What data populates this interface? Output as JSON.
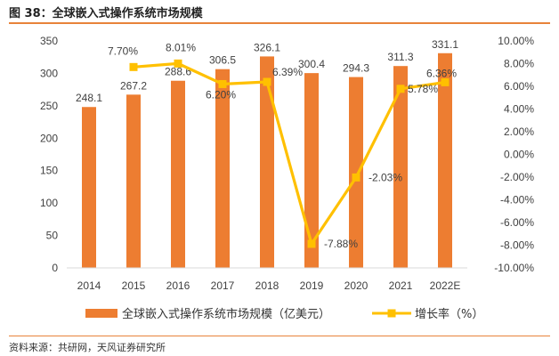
{
  "header": {
    "title": "图 38：全球嵌入式操作系统市场规模"
  },
  "footer": {
    "source": "资料来源：共研网，天风证券研究所"
  },
  "colors": {
    "bar": "#ed7d31",
    "line": "#ffc000",
    "axis": "#d9d9d9",
    "text": "#404040",
    "rule": "#e8833a"
  },
  "chart_data": {
    "type": "bar+line",
    "categories": [
      "2014",
      "2015",
      "2016",
      "2017",
      "2018",
      "2019",
      "2020",
      "2021",
      "2022E"
    ],
    "series": [
      {
        "name": "全球嵌入式操作系统市场规模（亿美元）",
        "type": "bar",
        "axis": "left",
        "values": [
          248.1,
          267.2,
          288.6,
          306.5,
          326.1,
          300.4,
          294.3,
          311.3,
          331.1
        ],
        "labels": [
          "248.1",
          "267.2",
          "288.6",
          "306.5",
          "326.1",
          "300.4",
          "294.3",
          "311.3",
          "331.1"
        ]
      },
      {
        "name": "增长率（%）",
        "type": "line",
        "axis": "right",
        "values": [
          null,
          7.7,
          8.01,
          6.2,
          6.39,
          -7.88,
          -2.03,
          5.78,
          6.36
        ],
        "labels": [
          null,
          "7.70%",
          "8.01%",
          "6.20%",
          "6.39%",
          "-7.88%",
          "-2.03%",
          "5.78%",
          "6.36%"
        ]
      }
    ],
    "y_left": {
      "min": 0,
      "max": 350,
      "step": 50,
      "ticks": [
        "0",
        "50",
        "100",
        "150",
        "200",
        "250",
        "300",
        "350"
      ]
    },
    "y_right": {
      "min": -10,
      "max": 10,
      "step": 2,
      "ticks": [
        "-10.00%",
        "-8.00%",
        "-6.00%",
        "-4.00%",
        "-2.00%",
        "0.00%",
        "2.00%",
        "4.00%",
        "6.00%",
        "8.00%",
        "10.00%"
      ]
    },
    "legend": {
      "position": "bottom",
      "items": [
        "全球嵌入式操作系统市场规模（亿美元）",
        "增长率（%）"
      ]
    },
    "grid": false
  }
}
